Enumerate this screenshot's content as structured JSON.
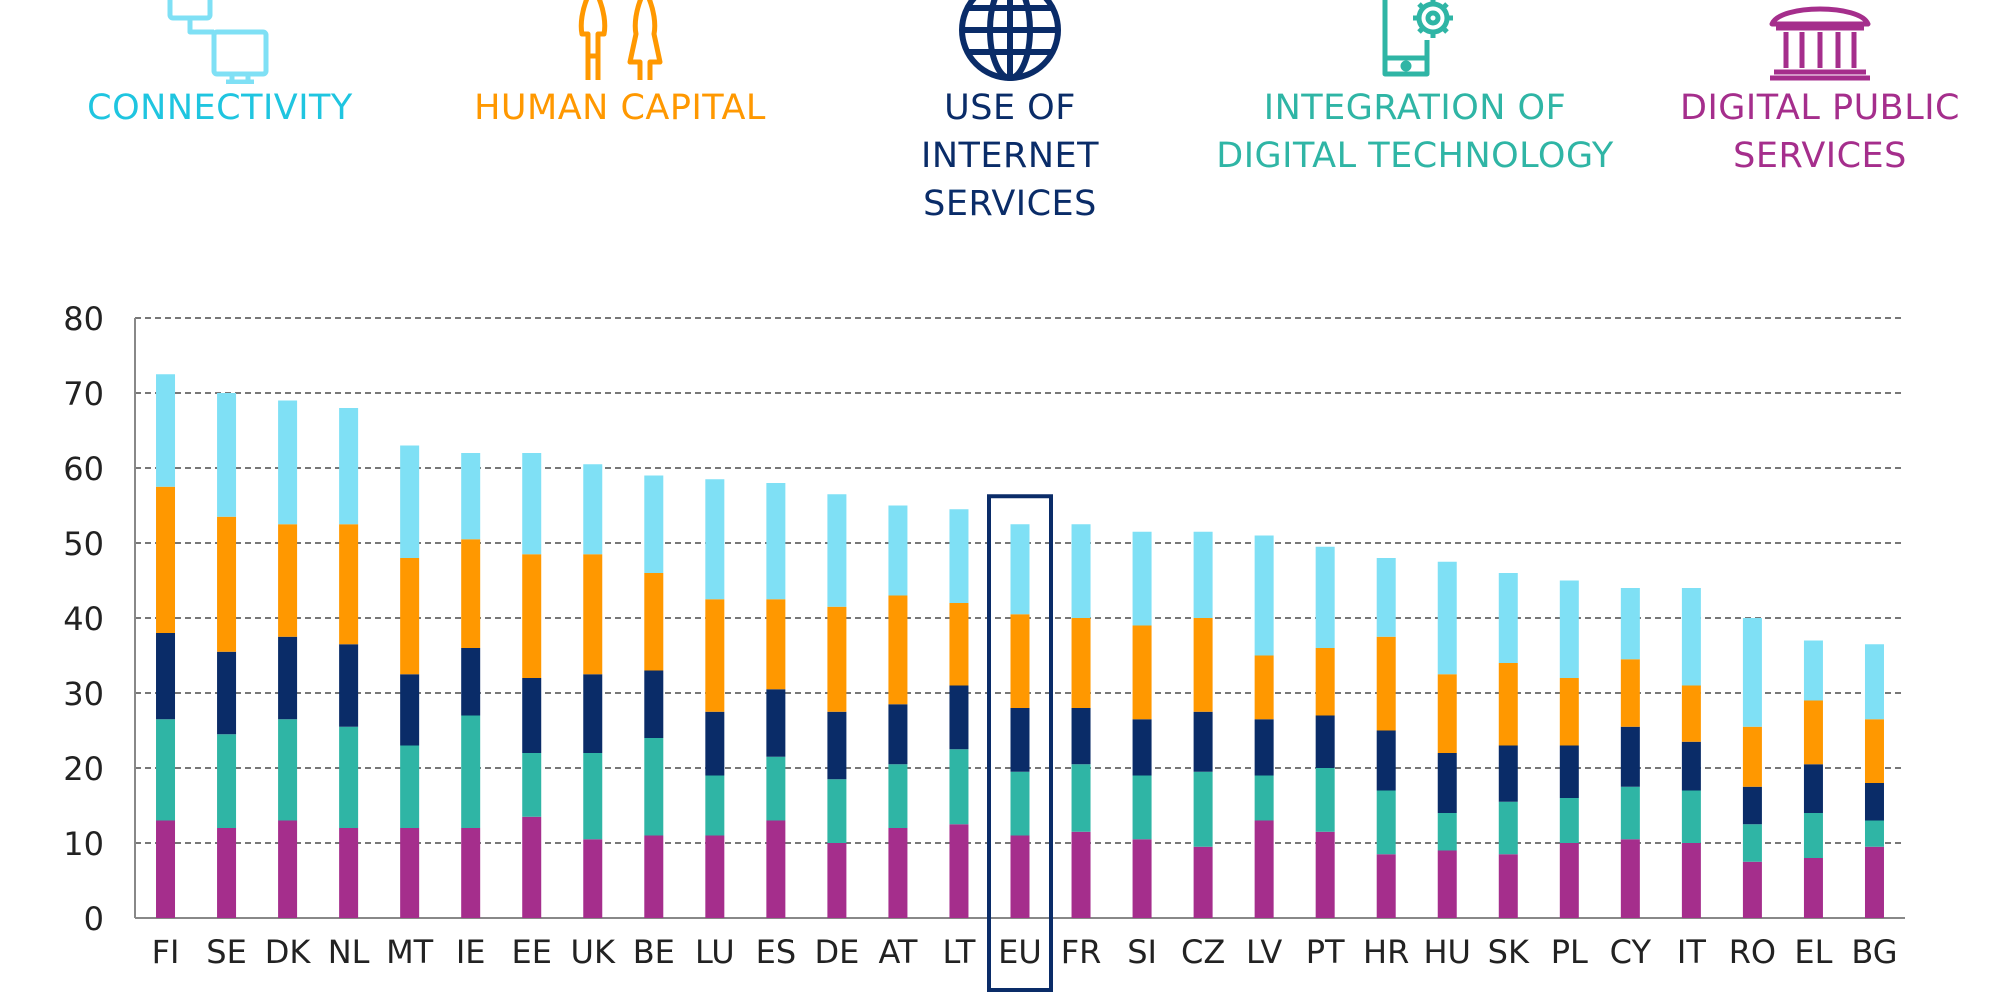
{
  "legend": [
    {
      "key": "connectivity",
      "label": "CONNECTIVITY",
      "color": "#7fe0f5",
      "icon": "connected-devices-icon"
    },
    {
      "key": "human_capital",
      "label": "HUMAN CAPITAL",
      "color": "#ff9800",
      "icon": "people-icon"
    },
    {
      "key": "use_of_internet",
      "label": "USE OF INTERNET\nSERVICES",
      "color": "#0a2c68",
      "icon": "globe-icon"
    },
    {
      "key": "integration",
      "label": "INTEGRATION OF\nDIGITAL TECHNOLOGY",
      "color": "#2fb5a5",
      "icon": "phone-gear-icon"
    },
    {
      "key": "digital_public",
      "label": "DIGITAL PUBLIC\nSERVICES",
      "color": "#a52e8c",
      "icon": "government-building-icon"
    }
  ],
  "chart_data": {
    "type": "bar",
    "stacked": true,
    "categories": [
      "FI",
      "SE",
      "DK",
      "NL",
      "MT",
      "IE",
      "EE",
      "UK",
      "BE",
      "LU",
      "ES",
      "DE",
      "AT",
      "LT",
      "EU",
      "FR",
      "SI",
      "CZ",
      "LV",
      "PT",
      "HR",
      "HU",
      "SK",
      "PL",
      "CY",
      "IT",
      "RO",
      "EL",
      "BG"
    ],
    "highlight": "EU",
    "ylim": [
      0,
      80
    ],
    "yticks": [
      0,
      10,
      20,
      30,
      40,
      50,
      60,
      70,
      80
    ],
    "grid": true,
    "series": [
      {
        "name": "DIGITAL PUBLIC SERVICES",
        "color": "#a52e8c",
        "values": [
          13,
          12,
          13,
          12,
          12,
          12,
          13.5,
          10.5,
          11,
          11,
          13,
          10,
          12,
          12.5,
          11,
          11.5,
          10.5,
          9.5,
          13,
          11.5,
          8.5,
          9,
          8.5,
          10,
          10.5,
          10,
          7.5,
          8,
          9.5
        ]
      },
      {
        "name": "INTEGRATION OF DIGITAL TECHNOLOGY",
        "color": "#2fb5a5",
        "values": [
          13.5,
          12.5,
          13.5,
          13.5,
          11,
          15,
          8.5,
          11.5,
          13,
          8,
          8.5,
          8.5,
          8.5,
          10,
          8.5,
          9,
          8.5,
          10,
          6,
          8.5,
          8.5,
          5,
          7,
          6,
          7,
          7,
          5,
          6,
          3.5
        ]
      },
      {
        "name": "USE OF INTERNET SERVICES",
        "color": "#0a2c68",
        "values": [
          11.5,
          11,
          11,
          11,
          9.5,
          9,
          10,
          10.5,
          9,
          8.5,
          9,
          9,
          8,
          8.5,
          8.5,
          7.5,
          7.5,
          8,
          7.5,
          7,
          8,
          8,
          7.5,
          7,
          8,
          6.5,
          5,
          6.5,
          5
        ]
      },
      {
        "name": "HUMAN CAPITAL",
        "color": "#ff9800",
        "values": [
          19.5,
          18,
          15,
          16,
          15.5,
          14.5,
          16.5,
          16,
          13,
          15,
          12,
          14,
          14.5,
          11,
          12.5,
          12,
          12.5,
          12.5,
          8.5,
          9,
          12.5,
          10.5,
          11,
          9,
          9,
          7.5,
          8,
          8.5,
          8.5
        ]
      },
      {
        "name": "CONNECTIVITY",
        "color": "#7fe0f5",
        "values": [
          15,
          16.5,
          16.5,
          15.5,
          15,
          11.5,
          13.5,
          12,
          13,
          16,
          15.5,
          15,
          12,
          12.5,
          12,
          12.5,
          12.5,
          11.5,
          16,
          13.5,
          10.5,
          15,
          12,
          13,
          9.5,
          13,
          14.5,
          8,
          10
        ]
      }
    ]
  }
}
